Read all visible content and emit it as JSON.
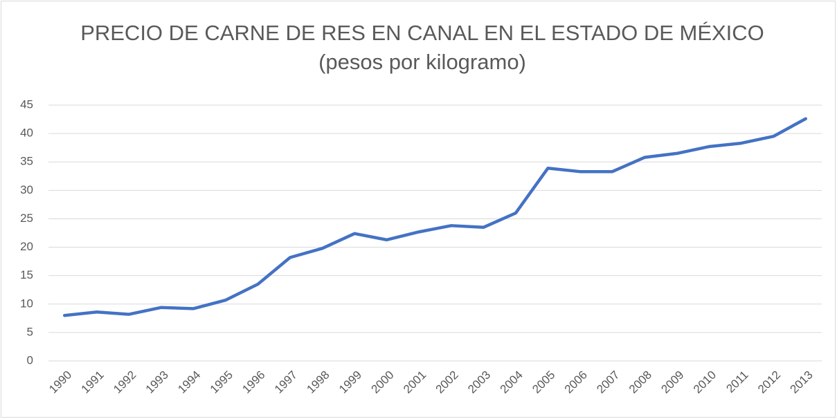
{
  "chart_data": {
    "type": "line",
    "title": "PRECIO DE CARNE DE RES EN CANAL EN EL ESTADO DE MÉXICO",
    "subtitle": "(pesos por kilogramo)",
    "categories": [
      "1990",
      "1991",
      "1992",
      "1993",
      "1994",
      "1995",
      "1996",
      "1997",
      "1998",
      "1999",
      "2000",
      "2001",
      "2002",
      "2003",
      "2004",
      "2005",
      "2006",
      "2007",
      "2008",
      "2009",
      "2010",
      "2011",
      "2012",
      "2013"
    ],
    "series": [
      {
        "color": "#4472c4",
        "values": [
          8.0,
          8.6,
          8.2,
          9.4,
          9.2,
          10.7,
          13.5,
          18.2,
          19.8,
          22.4,
          21.3,
          22.7,
          23.8,
          23.5,
          26.0,
          33.9,
          33.3,
          33.3,
          35.8,
          36.5,
          37.7,
          38.3,
          39.5,
          42.6
        ]
      }
    ],
    "ylim": [
      0,
      45
    ],
    "yticks": [
      0,
      5,
      10,
      15,
      20,
      25,
      30,
      35,
      40,
      45
    ],
    "grid": true
  }
}
